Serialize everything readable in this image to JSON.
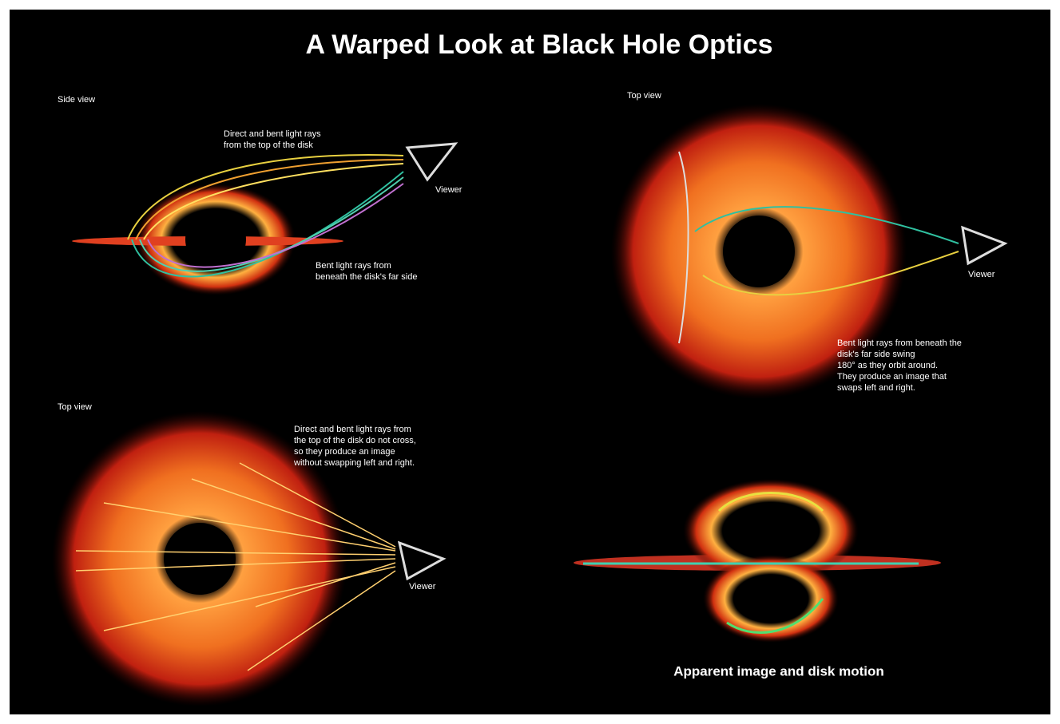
{
  "title": "A Warped Look at Black Hole Optics",
  "panels": [
    {
      "label": "Side view",
      "viewer": "Viewer",
      "notes": [
        [
          "Direct and bent light rays",
          "from the top of the disk"
        ],
        [
          "Bent light rays from",
          "beneath the disk's far side"
        ]
      ]
    },
    {
      "label": "Top view",
      "viewer": "Viewer",
      "notes": [
        [
          "Bent light rays from beneath the",
          "disk's far side swing",
          "180° as they orbit around.",
          "They produce an image that",
          "swaps left and right."
        ]
      ]
    },
    {
      "label": "Top view",
      "viewer": "Viewer",
      "notes": [
        [
          "Direct and bent light rays from",
          "the top of the disk do not cross,",
          "so they produce an image",
          "without swapping left and right."
        ]
      ]
    }
  ],
  "caption": "Apparent image and disk motion"
}
